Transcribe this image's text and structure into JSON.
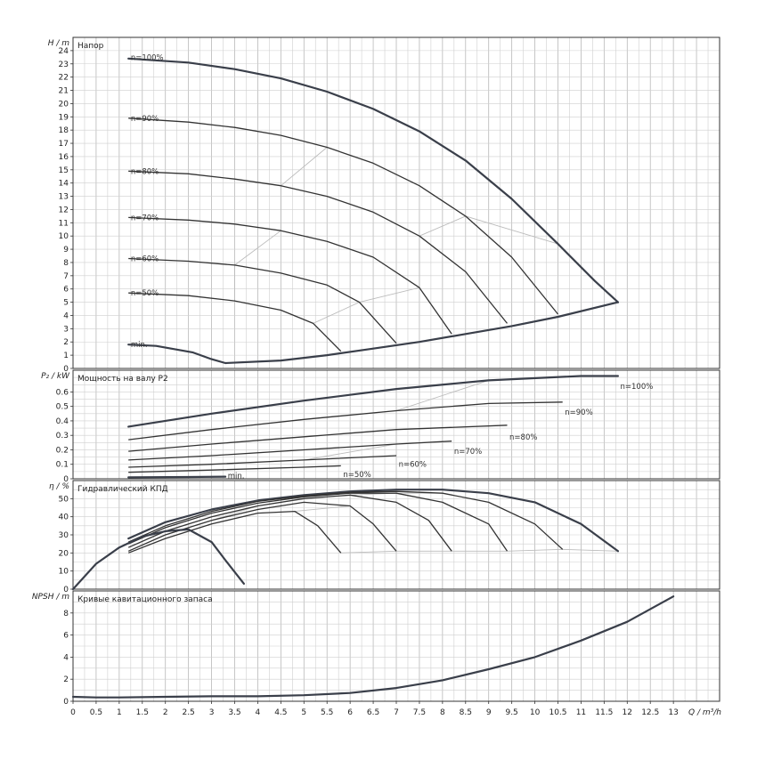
{
  "colors": {
    "curve": "#3a3f4a",
    "guide": "#bcbcbc",
    "grid": "#cfcfcf",
    "border": "#333333"
  },
  "chart_data": [
    {
      "type": "line",
      "title": "Напор",
      "ylabel": "H / m",
      "xlim": [
        0,
        14
      ],
      "ylim": [
        0,
        25
      ],
      "yticks": [
        0,
        1,
        2,
        3,
        4,
        5,
        6,
        7,
        8,
        9,
        10,
        11,
        12,
        13,
        14,
        15,
        16,
        17,
        18,
        19,
        20,
        21,
        22,
        23,
        24
      ],
      "series": [
        {
          "name": "n=100%",
          "label_at": [
            1.25,
            23.5
          ],
          "x": [
            1.2,
            2.5,
            3.5,
            4.5,
            5.5,
            6.5,
            7.5,
            8.5,
            9.5,
            10.5,
            11.3,
            11.8
          ],
          "y": [
            23.4,
            23.1,
            22.6,
            21.9,
            20.9,
            19.6,
            17.9,
            15.7,
            12.8,
            9.4,
            6.6,
            5.0
          ]
        },
        {
          "name": "n=90%",
          "label_at": [
            1.25,
            18.9
          ],
          "x": [
            1.2,
            2.5,
            3.5,
            4.5,
            5.5,
            6.5,
            7.5,
            8.5,
            9.5,
            10.5
          ],
          "y": [
            18.9,
            18.6,
            18.2,
            17.6,
            16.7,
            15.5,
            13.8,
            11.5,
            8.4,
            4.1
          ]
        },
        {
          "name": "n=80%",
          "label_at": [
            1.25,
            14.9
          ],
          "x": [
            1.2,
            2.5,
            3.5,
            4.5,
            5.5,
            6.5,
            7.5,
            8.5,
            9.4
          ],
          "y": [
            14.9,
            14.7,
            14.3,
            13.8,
            13.0,
            11.8,
            10.0,
            7.3,
            3.4
          ]
        },
        {
          "name": "n=70%",
          "label_at": [
            1.25,
            11.4
          ],
          "x": [
            1.2,
            2.5,
            3.5,
            4.5,
            5.5,
            6.5,
            7.5,
            8.2
          ],
          "y": [
            11.4,
            11.2,
            10.9,
            10.4,
            9.6,
            8.4,
            6.1,
            2.6
          ]
        },
        {
          "name": "n=60%",
          "label_at": [
            1.25,
            8.3
          ],
          "x": [
            1.2,
            2.5,
            3.5,
            4.5,
            5.5,
            6.2,
            7.0
          ],
          "y": [
            8.3,
            8.1,
            7.8,
            7.2,
            6.3,
            5.0,
            1.9
          ]
        },
        {
          "name": "n=50%",
          "label_at": [
            1.25,
            5.7
          ],
          "x": [
            1.2,
            2.5,
            3.5,
            4.5,
            5.2,
            5.8
          ],
          "y": [
            5.7,
            5.5,
            5.1,
            4.4,
            3.4,
            1.3
          ]
        },
        {
          "name": "min.",
          "label_at": [
            1.25,
            1.8
          ],
          "x": [
            1.2,
            1.8,
            2.6,
            3.0,
            3.3,
            4.5,
            5.5,
            6.5,
            7.5,
            8.5,
            9.5,
            10.5,
            11.8
          ],
          "y": [
            1.8,
            1.7,
            1.2,
            0.7,
            0.4,
            0.6,
            1.0,
            1.5,
            2.0,
            2.6,
            3.2,
            3.9,
            5.0
          ]
        }
      ]
    },
    {
      "type": "line",
      "title": "Мощность на валу P2",
      "ylabel": "P₂ / kW",
      "xlim": [
        0,
        14
      ],
      "ylim": [
        0,
        0.75
      ],
      "yticks": [
        0,
        0.1,
        0.2,
        0.3,
        0.4,
        0.5,
        0.6
      ],
      "series": [
        {
          "name": "n=100%",
          "label_at": [
            11.85,
            0.64
          ],
          "x": [
            1.2,
            3,
            5,
            7,
            9,
            11,
            11.8
          ],
          "y": [
            0.36,
            0.45,
            0.54,
            0.62,
            0.68,
            0.71,
            0.71
          ]
        },
        {
          "name": "n=90%",
          "label_at": [
            10.65,
            0.46
          ],
          "x": [
            1.2,
            3,
            5,
            7,
            9,
            10.6
          ],
          "y": [
            0.27,
            0.34,
            0.41,
            0.47,
            0.52,
            0.53
          ]
        },
        {
          "name": "n=80%",
          "label_at": [
            9.45,
            0.29
          ],
          "x": [
            1.2,
            3,
            5,
            7,
            9.4
          ],
          "y": [
            0.19,
            0.24,
            0.29,
            0.34,
            0.37
          ]
        },
        {
          "name": "n=70%",
          "label_at": [
            8.25,
            0.19
          ],
          "x": [
            1.2,
            3,
            5,
            7,
            8.2
          ],
          "y": [
            0.13,
            0.16,
            0.2,
            0.24,
            0.26
          ]
        },
        {
          "name": "n=60%",
          "label_at": [
            7.05,
            0.1
          ],
          "x": [
            1.2,
            3,
            5,
            7
          ],
          "y": [
            0.08,
            0.1,
            0.13,
            0.16
          ]
        },
        {
          "name": "n=50%",
          "label_at": [
            5.85,
            0.03
          ],
          "x": [
            1.2,
            3,
            5,
            5.8
          ],
          "y": [
            0.045,
            0.06,
            0.08,
            0.09
          ]
        },
        {
          "name": "min.",
          "label_at": [
            3.35,
            0.02
          ],
          "x": [
            1.2,
            2.5,
            3.3
          ],
          "y": [
            0.01,
            0.012,
            0.015
          ]
        }
      ]
    },
    {
      "type": "line",
      "title": "Гидравлический КПД",
      "ylabel": "η / %",
      "xlim": [
        0,
        14
      ],
      "ylim": [
        0,
        60
      ],
      "yticks": [
        0,
        10,
        20,
        30,
        40,
        50
      ],
      "series": [
        {
          "name": "n=100%",
          "x": [
            1.2,
            2,
            3,
            4,
            5,
            6,
            7,
            8,
            9,
            10,
            11,
            11.8
          ],
          "y": [
            28,
            37,
            44,
            49,
            52,
            54,
            55,
            55,
            53,
            48,
            36,
            21
          ]
        },
        {
          "name": "n=90%",
          "x": [
            1.2,
            2,
            3,
            4,
            5,
            6,
            7,
            8,
            9,
            10,
            10.6
          ],
          "y": [
            26,
            35,
            43,
            48.5,
            51.5,
            53.5,
            54,
            53,
            48,
            36,
            22
          ]
        },
        {
          "name": "n=80%",
          "x": [
            1.2,
            2,
            3,
            4,
            5,
            6,
            7,
            8,
            9,
            9.4
          ],
          "y": [
            25,
            34,
            42,
            47.5,
            51,
            53,
            53,
            48,
            36,
            21
          ]
        },
        {
          "name": "n=70%",
          "x": [
            1.2,
            2,
            3,
            4,
            5,
            6,
            7,
            7.7,
            8.2
          ],
          "y": [
            23,
            32,
            40,
            46,
            50,
            52,
            48,
            38,
            21
          ]
        },
        {
          "name": "n=60%",
          "x": [
            1.2,
            2,
            3,
            4,
            5,
            6,
            6.5,
            7
          ],
          "y": [
            21,
            30,
            38,
            44,
            48,
            46,
            36,
            21
          ]
        },
        {
          "name": "n=50%",
          "x": [
            1.2,
            2,
            3,
            4,
            4.8,
            5.3,
            5.8
          ],
          "y": [
            20,
            28,
            36,
            42,
            43,
            35,
            20
          ]
        },
        {
          "name": "min.",
          "x": [
            0,
            0.5,
            1,
            1.5,
            2,
            2.5,
            3,
            3.3,
            3.7
          ],
          "y": [
            0,
            14,
            23,
            29,
            32,
            33,
            26,
            16,
            3
          ]
        }
      ]
    },
    {
      "type": "line",
      "title": "Кривые кавитационного запаса",
      "ylabel": "NPSH / m",
      "xlabel": "Q / m³/h",
      "xlim": [
        0,
        14
      ],
      "ylim": [
        0,
        10
      ],
      "yticks": [
        0,
        2,
        4,
        6,
        8
      ],
      "xticks": [
        0,
        0.5,
        1,
        1.5,
        2,
        2.5,
        3,
        3.5,
        4,
        4.5,
        5,
        5.5,
        6,
        6.5,
        7,
        7.5,
        8,
        8.5,
        9,
        9.5,
        10,
        10.5,
        11,
        11.5,
        12,
        12.5,
        13
      ],
      "series": [
        {
          "name": "NPSH",
          "x": [
            0,
            0.5,
            1,
            2,
            3,
            4,
            5,
            6,
            7,
            8,
            9,
            10,
            11,
            12,
            13
          ],
          "y": [
            0.4,
            0.35,
            0.35,
            0.4,
            0.45,
            0.45,
            0.55,
            0.75,
            1.2,
            1.9,
            2.9,
            4.0,
            5.5,
            7.2,
            9.5
          ]
        }
      ]
    }
  ]
}
